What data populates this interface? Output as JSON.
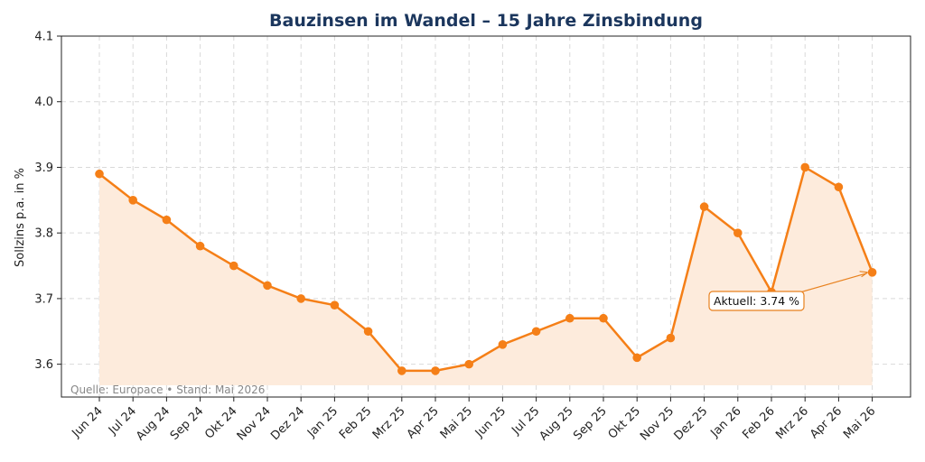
{
  "chart_data": {
    "type": "line",
    "title": "Bauzinsen im Wandel – 15 Jahre Zinsbindung",
    "xlabel": "",
    "ylabel": "Sollzins p.a. in %",
    "categories": [
      "Jun 24",
      "Jul 24",
      "Aug 24",
      "Sep 24",
      "Okt 24",
      "Nov 24",
      "Dez 24",
      "Jan 25",
      "Feb 25",
      "Mrz 25",
      "Apr 25",
      "Mai 25",
      "Jun 25",
      "Jul 25",
      "Aug 25",
      "Sep 25",
      "Okt 25",
      "Nov 25",
      "Dez 25",
      "Jan 26",
      "Feb 26",
      "Mrz 26",
      "Apr 26",
      "Mai 26"
    ],
    "series": [
      {
        "values": [
          3.89,
          3.85,
          3.82,
          3.78,
          3.75,
          3.72,
          3.7,
          3.69,
          3.65,
          3.59,
          3.59,
          3.6,
          3.63,
          3.65,
          3.67,
          3.67,
          3.61,
          3.64,
          3.84,
          3.8,
          3.71,
          3.9,
          3.87,
          3.74
        ]
      }
    ],
    "ylim": [
      3.55,
      4.1
    ],
    "yticks": [
      3.6,
      3.7,
      3.8,
      3.9,
      4.0,
      4.1
    ],
    "grid": true,
    "fill_area": true,
    "annotation": {
      "text": "Aktuell: 3.74 %",
      "target_index": 23
    },
    "source_note": "Quelle: Europace • Stand: Mai 2026",
    "colors": {
      "line": "#f57f17",
      "fill": "#fdebdc",
      "title": "#1b365d",
      "annotation_border": "#e8811e"
    }
  }
}
